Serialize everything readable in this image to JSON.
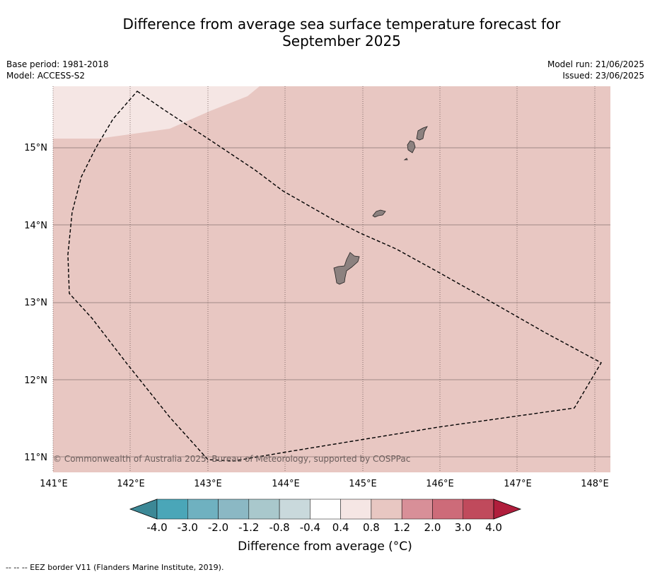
{
  "title_line1": "Difference from average sea surface temperature forecast for",
  "title_line2": "September 2025",
  "meta": {
    "base_period": "Base period: 1981-2018",
    "model": "Model: ACCESS-S2",
    "model_run": "Model run: 21/06/2025",
    "issued": "Issued: 23/06/2025"
  },
  "map": {
    "lon_labels": [
      "141°E",
      "142°E",
      "143°E",
      "144°E",
      "145°E",
      "146°E",
      "147°E",
      "148°E"
    ],
    "lat_labels": [
      "15°N",
      "14°N",
      "13°N",
      "12°N",
      "11°N"
    ],
    "copyright": "© Commonwealth of Australia 2025, Bureau of Meteorology, supported by COSPPac",
    "fill_colors": {
      "main": "#e8c7c2",
      "light": "#f5e6e4"
    }
  },
  "colorbar": {
    "title": "Difference from average (°C)",
    "tick_labels": [
      "-4.0",
      "-3.0",
      "-2.0",
      "-1.2",
      "-0.8",
      "-0.4",
      "0.4",
      "0.8",
      "1.2",
      "2.0",
      "3.0",
      "4.0"
    ],
    "colors": [
      "#4aa6b8",
      "#6fb1c0",
      "#8bb8c4",
      "#a9c8cc",
      "#c9d9dc",
      "#ffffff",
      "#f5e6e4",
      "#e8c7c2",
      "#d88f98",
      "#cd6b79",
      "#c04a5c"
    ],
    "under_color": "#3c8896",
    "over_color": "#b01e3c"
  },
  "footer": "--  --  -- EEZ border V11 (Flanders Marine Institute, 2019)."
}
